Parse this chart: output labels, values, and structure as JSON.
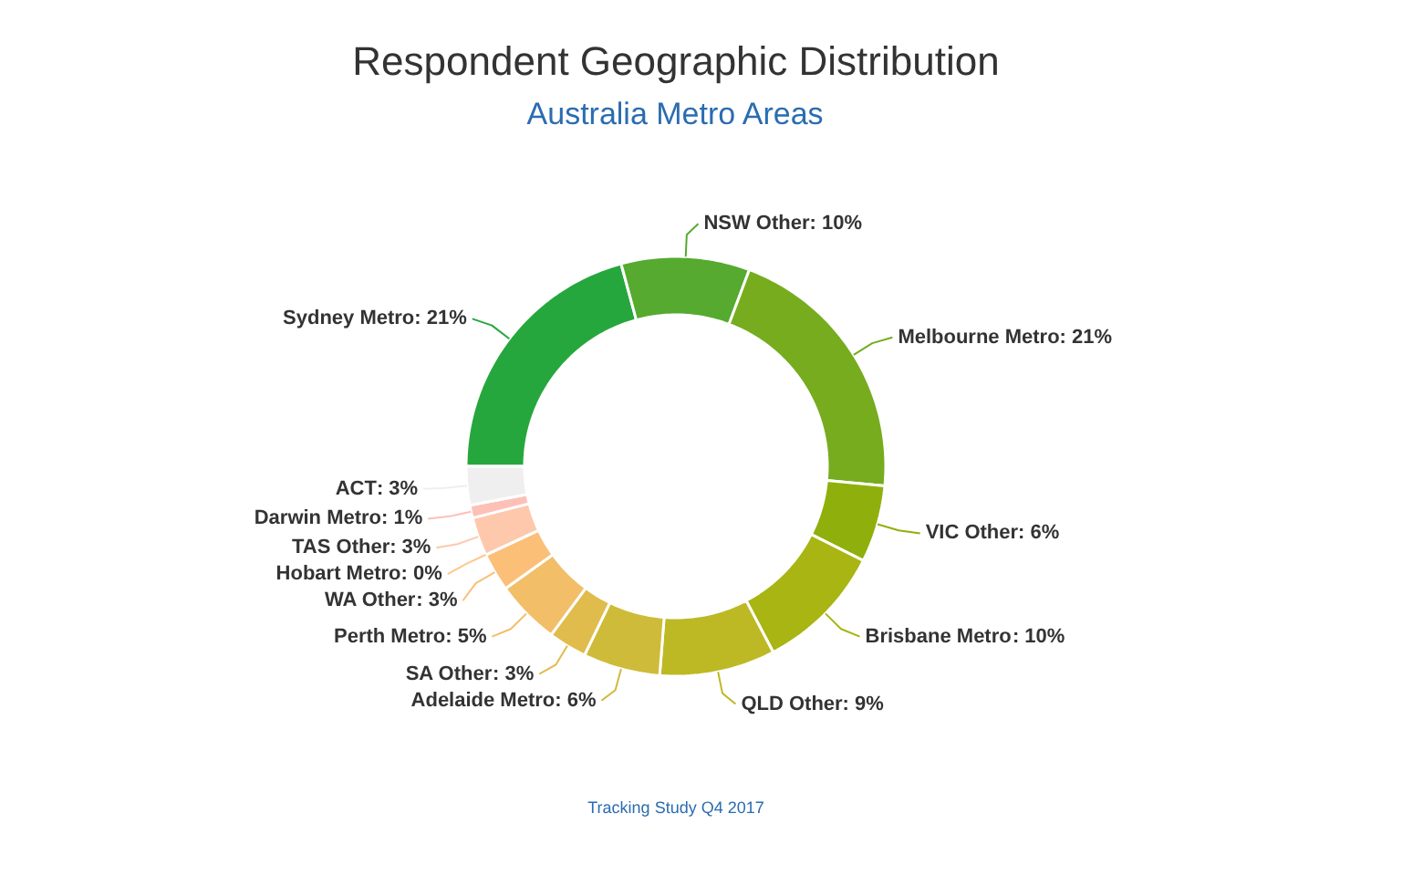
{
  "chart_data": {
    "type": "donut",
    "title": "Respondent Geographic Distribution",
    "subtitle": "Australia Metro Areas",
    "categories": [
      "Sydney Metro",
      "NSW Other",
      "Melbourne Metro",
      "VIC Other",
      "Brisbane Metro",
      "QLD Other",
      "Adelaide Metro",
      "SA Other",
      "Perth Metro",
      "WA Other",
      "Hobart Metro",
      "TAS Other",
      "Darwin Metro",
      "ACT"
    ],
    "values": [
      21,
      10,
      21,
      6,
      10,
      9,
      6,
      3,
      5,
      3,
      0,
      3,
      1,
      3
    ],
    "colors": [
      "#26a73d",
      "#55aa2f",
      "#76ac1e",
      "#8fb00c",
      "#a8b512",
      "#bcb925",
      "#cfbb3a",
      "#e0bc4c",
      "#f2be68",
      "#fbbf78",
      "#fdc890",
      "#fec8ad",
      "#fdc0b6",
      "#efefef"
    ],
    "value_labels": [
      ": 21%",
      ": 10%",
      ": 21%",
      ": 6%",
      ": 10%",
      ": 9%",
      ": 6%",
      ": 3%",
      ": 5%",
      ": 3%",
      ": 0%",
      ": 3%",
      ": 1%",
      ": 3%"
    ],
    "annotations": [
      "Tracking Study Q4 2017"
    ]
  }
}
